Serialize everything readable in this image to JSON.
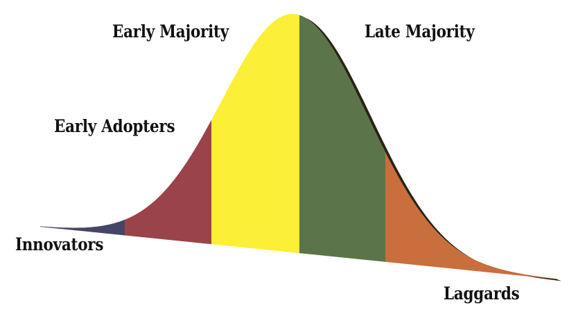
{
  "segments": [
    {
      "key": "innovators",
      "label": "Innovators",
      "color": "#454566"
    },
    {
      "key": "early_adopters",
      "label": "Early Adopters",
      "color": "#9a434a"
    },
    {
      "key": "early_majority",
      "label": "Early Majority",
      "color": "#fbef37"
    },
    {
      "key": "late_majority",
      "label": "Late Majority",
      "color": "#5c7449"
    },
    {
      "key": "laggards",
      "label": "Laggards",
      "color": "#c96e3d"
    }
  ],
  "shadow_color": "#2a2315",
  "background": "#ffffff"
}
